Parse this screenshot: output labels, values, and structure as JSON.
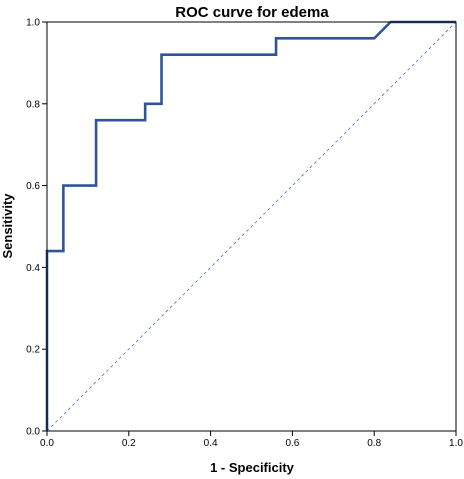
{
  "chart_data": {
    "type": "line",
    "title": "ROC curve for edema",
    "xlabel": "1 - Specificity",
    "ylabel": "Sensitivity",
    "xlim": [
      0,
      1
    ],
    "ylim": [
      0,
      1
    ],
    "x_ticks": [
      "0.0",
      "0.2",
      "0.4",
      "0.6",
      "0.8",
      "1.0"
    ],
    "y_ticks": [
      "0.0",
      "0.2",
      "0.4",
      "0.6",
      "0.8",
      "1.0"
    ],
    "grid": false,
    "legend": "none",
    "series": [
      {
        "style": "step",
        "color": "#2f5597",
        "points": [
          [
            0.0,
            0.0
          ],
          [
            0.0,
            0.44
          ],
          [
            0.04,
            0.44
          ],
          [
            0.04,
            0.6
          ],
          [
            0.12,
            0.6
          ],
          [
            0.12,
            0.76
          ],
          [
            0.24,
            0.76
          ],
          [
            0.24,
            0.8
          ],
          [
            0.28,
            0.8
          ],
          [
            0.28,
            0.92
          ],
          [
            0.56,
            0.92
          ],
          [
            0.56,
            0.96
          ],
          [
            0.8,
            0.96
          ],
          [
            0.84,
            1.0
          ],
          [
            1.0,
            1.0
          ]
        ]
      },
      {
        "style": "reference-diagonal",
        "color": "#5a6fa8",
        "points": [
          [
            0.0,
            0.0
          ],
          [
            1.0,
            1.0
          ]
        ]
      }
    ]
  }
}
